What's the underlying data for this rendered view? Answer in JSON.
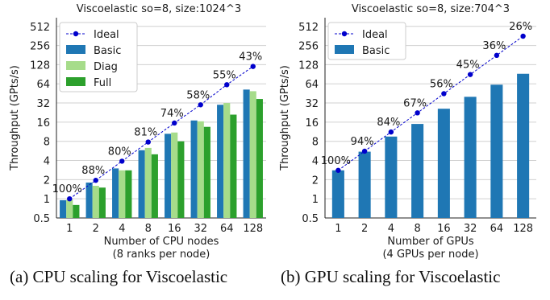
{
  "chart_data": [
    {
      "type": "bar",
      "title": "Viscoelastic so=8, size:1024^3",
      "xlabel": "Number of CPU nodes",
      "xlabel2": "(8 ranks per node)",
      "ylabel": "Throughput (GPts/s)",
      "yscale": "log2",
      "ylim": [
        0.5,
        700
      ],
      "yticks": [
        "0.5",
        "1",
        "2",
        "4",
        "8",
        "16",
        "32",
        "64",
        "128",
        "256",
        "512"
      ],
      "grid": true,
      "legend": "top-left",
      "categories": [
        "1",
        "2",
        "4",
        "8",
        "16",
        "32",
        "64",
        "128"
      ],
      "series": [
        {
          "name": "Basic",
          "color": "#1f77b4",
          "values": [
            0.95,
            1.8,
            3.0,
            5.8,
            10.5,
            17.0,
            30.0,
            52.0
          ]
        },
        {
          "name": "Diag",
          "color": "#a6dc8a",
          "values": [
            0.97,
            1.6,
            2.8,
            6.3,
            11.0,
            16.5,
            32.0,
            49.0
          ]
        },
        {
          "name": "Full",
          "color": "#2ca02c",
          "values": [
            0.8,
            1.5,
            2.8,
            5.0,
            8.0,
            13.5,
            21.0,
            37.0
          ]
        }
      ],
      "ideal": {
        "name": "Ideal",
        "color": "#0000cc",
        "values": [
          1.0,
          1.95,
          3.9,
          7.8,
          15.5,
          30.0,
          62.0,
          120.0
        ],
        "labels": [
          "100%",
          "88%",
          "80%",
          "81%",
          "74%",
          "58%",
          "55%",
          "43%"
        ]
      }
    },
    {
      "type": "bar",
      "title": "Viscoelastic so=8, size:704^3",
      "xlabel": "Number of GPUs",
      "xlabel2": "(4 GPUs per node)",
      "ylabel": "Throughput (GPts/s)",
      "yscale": "log2",
      "ylim": [
        0.5,
        700
      ],
      "yticks": [
        "0.5",
        "1",
        "2",
        "4",
        "8",
        "16",
        "32",
        "64",
        "128",
        "256",
        "512"
      ],
      "grid": true,
      "legend": "top-left",
      "categories": [
        "1",
        "2",
        "4",
        "8",
        "16",
        "32",
        "64",
        "128"
      ],
      "series": [
        {
          "name": "Basic",
          "color": "#1f77b4",
          "values": [
            2.8,
            5.5,
            9.5,
            15.0,
            26.0,
            40.0,
            62.0,
            92.0
          ]
        }
      ],
      "ideal": {
        "name": "Ideal",
        "color": "#0000cc",
        "values": [
          2.8,
          5.6,
          11.2,
          22.4,
          44.8,
          89.6,
          179.2,
          358.4
        ],
        "labels": [
          "100%",
          "94%",
          "84%",
          "67%",
          "56%",
          "45%",
          "36%",
          "26%"
        ]
      }
    }
  ],
  "captions": [
    "(a) CPU scaling for Viscoelastic",
    "(b) GPU scaling for Viscoelastic"
  ]
}
